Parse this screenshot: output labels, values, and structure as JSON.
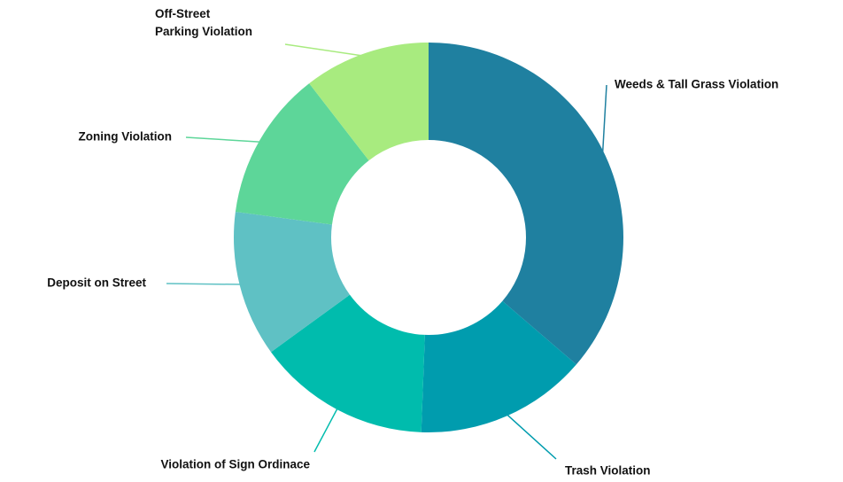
{
  "chart_data": {
    "type": "donut",
    "categories": [
      "Weeds & Tall Grass Violation",
      "Trash Violation",
      "Violation of Sign Ordinace",
      "Deposit on Street",
      "Zoning Violation",
      "Off-Street Parking Violation"
    ],
    "values": [
      36.3,
      14.3,
      14.4,
      12.1,
      12.4,
      10.5
    ],
    "colors": [
      "#1f80a0",
      "#009cae",
      "#00bcad",
      "#5fc1c4",
      "#5dd699",
      "#a8eb7f"
    ]
  }
}
